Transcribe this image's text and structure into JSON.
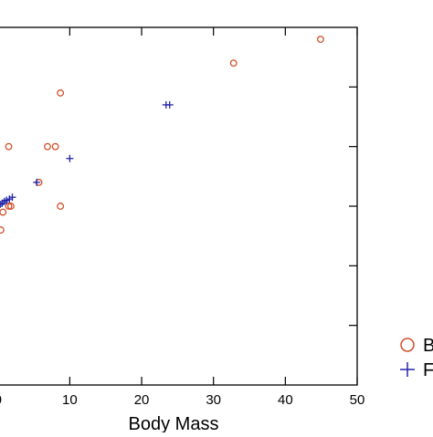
{
  "chart_data": {
    "type": "scatter",
    "xlabel": "Body Mass",
    "ylabel": "",
    "xlim": [
      -2,
      50
    ],
    "ylim": [
      0,
      6
    ],
    "xticks": [
      0,
      10,
      20,
      30,
      40,
      50
    ],
    "xtick_labels": [
      "0",
      "10",
      "20",
      "30",
      "40",
      "50"
    ],
    "yticks": [
      1,
      2,
      3,
      4,
      5
    ],
    "grid": false,
    "legend_position": "right",
    "series": [
      {
        "name": "B",
        "marker": "circle",
        "color": "#d0502a",
        "points": [
          [
            44.9,
            5.8
          ],
          [
            32.8,
            5.4
          ],
          [
            8.7,
            4.9
          ],
          [
            1.5,
            4.0
          ],
          [
            6.9,
            4.0
          ],
          [
            8.0,
            4.0
          ],
          [
            5.7,
            3.4
          ],
          [
            1.5,
            3.0
          ],
          [
            1.8,
            3.0
          ],
          [
            8.7,
            3.0
          ],
          [
            0.7,
            2.9
          ],
          [
            0.4,
            2.6
          ],
          [
            -0.3,
            2.4
          ],
          [
            -0.3,
            2.3
          ],
          [
            -0.5,
            2.0
          ]
        ]
      },
      {
        "name": "F",
        "marker": "plus",
        "color": "#2222aa",
        "points": [
          [
            23.9,
            4.7
          ],
          [
            23.4,
            4.7
          ],
          [
            10.0,
            3.8
          ],
          [
            5.4,
            3.4
          ],
          [
            2.0,
            3.15
          ],
          [
            1.6,
            3.12
          ],
          [
            1.2,
            3.1
          ],
          [
            0.9,
            3.08
          ],
          [
            0.6,
            3.05
          ],
          [
            0.3,
            3.03
          ],
          [
            0.0,
            3.0
          ]
        ]
      }
    ]
  }
}
